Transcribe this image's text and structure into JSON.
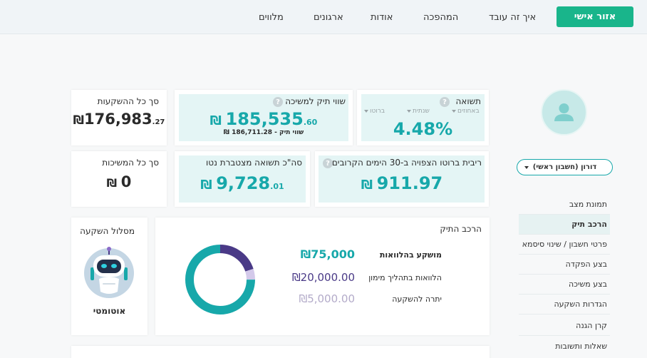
{
  "header": {
    "personal_area": "אזור אישי",
    "nav": [
      "איך זה עובד",
      "המהפכה",
      "אודות",
      "ארגונים",
      "מלווים"
    ]
  },
  "sidebar": {
    "account": "דורון (חשבון ראשי)",
    "items": [
      "תמונת מצב",
      "הרכב תיק",
      "פרטי חשבון / שינוי סיסמא",
      "בצע הפקדה",
      "בצע משיכה",
      "הגדרות השקעה",
      "קרן הגנה",
      "שאלות ותשובות"
    ],
    "active_index": 1
  },
  "return_card": {
    "title": "תשואה",
    "tabs": [
      "באחוזים",
      "שנתית",
      "ברוטו"
    ],
    "value": "4.48%"
  },
  "portfolio_value": {
    "title": "שווי תיק למשיכה",
    "currency": "₪",
    "integer": "185,535",
    "decimals": ".60",
    "sub": "שווי תיק - 186,711.28 ₪"
  },
  "total_investments": {
    "title": "סך כל ההשקעות",
    "currency": "₪",
    "integer": "176,983",
    "decimals": ".27"
  },
  "expected_interest": {
    "title": "ריבית ברוטו הצפויה ב-30 הימים הקרובים",
    "currency": "₪",
    "value": "911.97"
  },
  "net_return": {
    "title": "סה\"כ תשואה מצטברת נטו",
    "currency": "₪",
    "integer": "9,728",
    "decimals": ".01"
  },
  "total_withdrawals": {
    "title": "סך כל המשיכות",
    "currency": "₪",
    "value": "0"
  },
  "composition": {
    "title": "הרכב התיק",
    "rows": [
      {
        "label": "מושקע בהלוואות",
        "value": "₪75,000"
      },
      {
        "label": "הלוואות בתהליך מימון",
        "value": "₪20,000.00"
      },
      {
        "label": "יתרה להשקעה",
        "value": "₪5,000.00"
      }
    ],
    "donut": {
      "values": [
        75000,
        20000,
        5000
      ],
      "colors": [
        "#17a8aa",
        "#4a3a87",
        "#d3c9ea"
      ]
    }
  },
  "track": {
    "title": "מסלול השקעה",
    "value": "אוטומטי"
  }
}
